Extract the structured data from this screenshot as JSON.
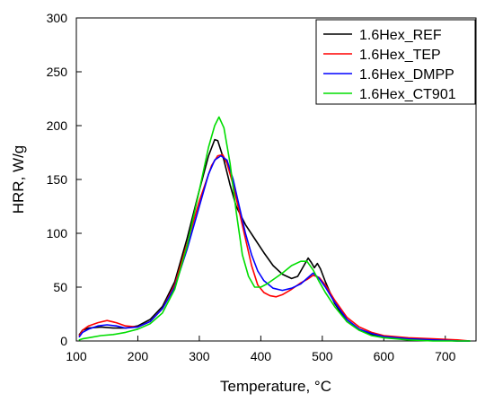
{
  "chart_data": {
    "type": "line",
    "title": "",
    "xlabel": "Temperature, °C",
    "ylabel": "HRR, W/g",
    "xlim": [
      100,
      750
    ],
    "ylim": [
      0,
      300
    ],
    "xticks": [
      100,
      200,
      300,
      400,
      500,
      600,
      700
    ],
    "yticks": [
      0,
      50,
      100,
      150,
      200,
      250,
      300
    ],
    "x_tick_labels": [
      "100",
      "200",
      "300",
      "400",
      "500",
      "600",
      "700"
    ],
    "y_tick_labels": [
      "0",
      "50",
      "100",
      "150",
      "200",
      "250",
      "300"
    ],
    "grid": false,
    "legend_position": "top-right",
    "series": [
      {
        "name": "1.6Hex_REF",
        "color": "#000000",
        "points": [
          [
            105,
            6
          ],
          [
            110,
            10
          ],
          [
            120,
            12
          ],
          [
            140,
            13
          ],
          [
            160,
            12
          ],
          [
            180,
            12
          ],
          [
            200,
            14
          ],
          [
            220,
            20
          ],
          [
            240,
            32
          ],
          [
            260,
            55
          ],
          [
            280,
            95
          ],
          [
            300,
            140
          ],
          [
            315,
            172
          ],
          [
            325,
            187
          ],
          [
            330,
            186
          ],
          [
            340,
            168
          ],
          [
            350,
            145
          ],
          [
            360,
            125
          ],
          [
            375,
            108
          ],
          [
            390,
            95
          ],
          [
            405,
            82
          ],
          [
            420,
            70
          ],
          [
            435,
            62
          ],
          [
            450,
            58
          ],
          [
            460,
            60
          ],
          [
            470,
            70
          ],
          [
            477,
            77
          ],
          [
            482,
            73
          ],
          [
            487,
            68
          ],
          [
            492,
            72
          ],
          [
            497,
            67
          ],
          [
            505,
            55
          ],
          [
            520,
            35
          ],
          [
            540,
            18
          ],
          [
            560,
            10
          ],
          [
            580,
            6
          ],
          [
            600,
            4
          ],
          [
            640,
            2
          ],
          [
            680,
            1
          ],
          [
            720,
            0
          ],
          [
            740,
            0
          ]
        ]
      },
      {
        "name": "1.6Hex_TEP",
        "color": "#ff0000",
        "points": [
          [
            105,
            5
          ],
          [
            110,
            10
          ],
          [
            120,
            14
          ],
          [
            135,
            17
          ],
          [
            150,
            19
          ],
          [
            165,
            17
          ],
          [
            180,
            14
          ],
          [
            200,
            13
          ],
          [
            220,
            18
          ],
          [
            240,
            30
          ],
          [
            260,
            52
          ],
          [
            280,
            90
          ],
          [
            300,
            130
          ],
          [
            320,
            163
          ],
          [
            330,
            172
          ],
          [
            338,
            173
          ],
          [
            345,
            165
          ],
          [
            355,
            145
          ],
          [
            365,
            120
          ],
          [
            375,
            95
          ],
          [
            385,
            70
          ],
          [
            395,
            52
          ],
          [
            405,
            45
          ],
          [
            415,
            42
          ],
          [
            425,
            41
          ],
          [
            435,
            43
          ],
          [
            450,
            48
          ],
          [
            465,
            54
          ],
          [
            475,
            57
          ],
          [
            485,
            61
          ],
          [
            495,
            59
          ],
          [
            505,
            52
          ],
          [
            520,
            38
          ],
          [
            540,
            22
          ],
          [
            560,
            13
          ],
          [
            580,
            8
          ],
          [
            600,
            5
          ],
          [
            640,
            3
          ],
          [
            680,
            2
          ],
          [
            720,
            1
          ],
          [
            740,
            0
          ]
        ]
      },
      {
        "name": "1.6Hex_DMPP",
        "color": "#0000ff",
        "points": [
          [
            105,
            4
          ],
          [
            110,
            8
          ],
          [
            120,
            11
          ],
          [
            135,
            14
          ],
          [
            150,
            15
          ],
          [
            165,
            14
          ],
          [
            180,
            12
          ],
          [
            200,
            13
          ],
          [
            220,
            18
          ],
          [
            240,
            30
          ],
          [
            260,
            50
          ],
          [
            280,
            85
          ],
          [
            300,
            125
          ],
          [
            315,
            155
          ],
          [
            325,
            168
          ],
          [
            335,
            172
          ],
          [
            345,
            168
          ],
          [
            355,
            150
          ],
          [
            365,
            125
          ],
          [
            375,
            100
          ],
          [
            385,
            80
          ],
          [
            395,
            65
          ],
          [
            405,
            56
          ],
          [
            420,
            49
          ],
          [
            435,
            47
          ],
          [
            450,
            49
          ],
          [
            465,
            53
          ],
          [
            475,
            58
          ],
          [
            485,
            63
          ],
          [
            495,
            58
          ],
          [
            505,
            50
          ],
          [
            520,
            36
          ],
          [
            540,
            20
          ],
          [
            560,
            11
          ],
          [
            580,
            7
          ],
          [
            600,
            4
          ],
          [
            640,
            2
          ],
          [
            680,
            1
          ],
          [
            720,
            0
          ],
          [
            740,
            0
          ]
        ]
      },
      {
        "name": "1.6Hex_CT901",
        "color": "#00dd00",
        "points": [
          [
            105,
            1
          ],
          [
            110,
            2
          ],
          [
            120,
            3
          ],
          [
            140,
            5
          ],
          [
            160,
            6
          ],
          [
            180,
            8
          ],
          [
            200,
            11
          ],
          [
            220,
            16
          ],
          [
            240,
            26
          ],
          [
            260,
            48
          ],
          [
            280,
            88
          ],
          [
            300,
            140
          ],
          [
            315,
            180
          ],
          [
            325,
            200
          ],
          [
            332,
            208
          ],
          [
            340,
            198
          ],
          [
            350,
            165
          ],
          [
            360,
            120
          ],
          [
            370,
            80
          ],
          [
            380,
            60
          ],
          [
            390,
            50
          ],
          [
            400,
            50
          ],
          [
            410,
            53
          ],
          [
            420,
            57
          ],
          [
            435,
            63
          ],
          [
            450,
            70
          ],
          [
            465,
            74
          ],
          [
            475,
            74
          ],
          [
            485,
            66
          ],
          [
            495,
            55
          ],
          [
            505,
            45
          ],
          [
            520,
            32
          ],
          [
            540,
            18
          ],
          [
            560,
            10
          ],
          [
            580,
            5
          ],
          [
            600,
            3
          ],
          [
            640,
            1
          ],
          [
            680,
            0
          ],
          [
            740,
            0
          ]
        ]
      }
    ]
  }
}
